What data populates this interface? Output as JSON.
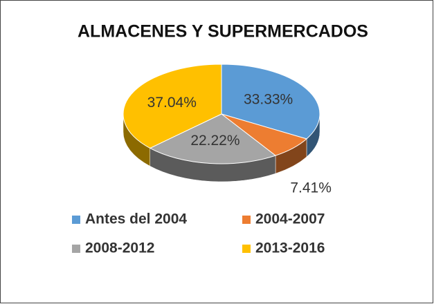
{
  "chart_data": {
    "type": "pie",
    "title": "ALMACENES Y SUPERMERCADOS",
    "categories": [
      "Antes del 2004",
      "2004-2007",
      "2008-2012",
      "2013-2016"
    ],
    "values": [
      33.33,
      7.41,
      22.22,
      37.04
    ],
    "value_labels": [
      "33.33%",
      "7.41%",
      "22.22%",
      "37.04%"
    ],
    "colors": [
      "#5b9bd5",
      "#ed7d31",
      "#a5a5a5",
      "#ffc000"
    ],
    "legend": "bottom"
  }
}
